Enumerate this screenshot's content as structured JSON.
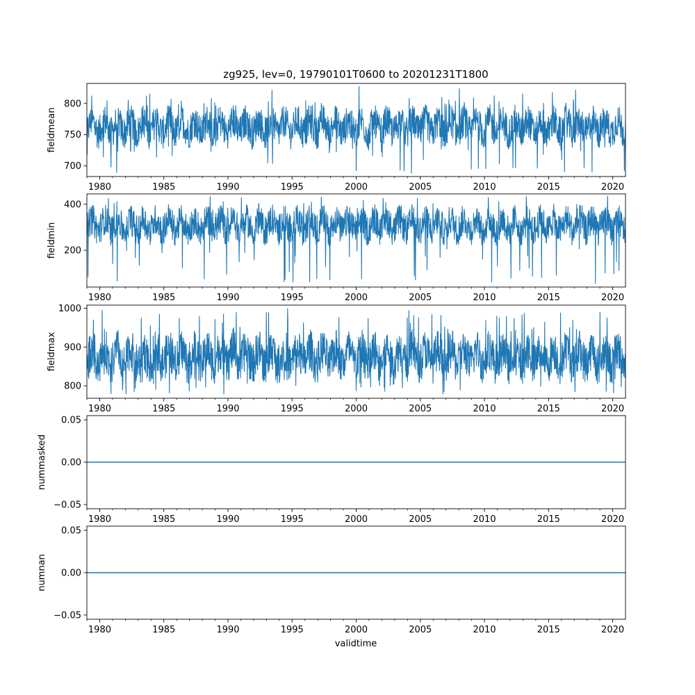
{
  "figure": {
    "title": "zg925, lev=0, 19790101T0600 to 20201231T1800",
    "xlabel": "validtime"
  },
  "colors": {
    "series": "#1f77b4",
    "axes": "#000000",
    "background": "#ffffff"
  },
  "chart_data": [
    {
      "type": "line",
      "title": "zg925, lev=0, 19790101T0600 to 20201231T1800",
      "xlabel": "",
      "ylabel": "fieldmean",
      "xlim": [
        "1979-01-01",
        "2020-12-31"
      ],
      "ylim": [
        683,
        832
      ],
      "x_ticks": [
        "1980",
        "1985",
        "1990",
        "1995",
        "2000",
        "2005",
        "2010",
        "2015",
        "2020"
      ],
      "y_ticks": [
        700,
        750,
        800
      ],
      "y_tick_labels": [
        "700",
        "750",
        "800"
      ],
      "grid": false,
      "series": [
        {
          "color": "#1f77b4",
          "band": {
            "core_low": 735,
            "core_high": 790,
            "min": 688,
            "max": 827
          }
        }
      ]
    },
    {
      "type": "line",
      "title": "",
      "xlabel": "",
      "ylabel": "fieldmin",
      "xlim": [
        "1979-01-01",
        "2020-12-31"
      ],
      "ylim": [
        40,
        445
      ],
      "x_ticks": [
        "1980",
        "1985",
        "1990",
        "1995",
        "2000",
        "2005",
        "2010",
        "2015",
        "2020"
      ],
      "y_ticks": [
        200,
        400
      ],
      "y_tick_labels": [
        "200",
        "400"
      ],
      "grid": false,
      "series": [
        {
          "color": "#1f77b4",
          "band": {
            "core_low": 240,
            "core_high": 380,
            "min": 55,
            "max": 435
          }
        }
      ]
    },
    {
      "type": "line",
      "title": "",
      "xlabel": "",
      "ylabel": "fieldmax",
      "xlim": [
        "1979-01-01",
        "2020-12-31"
      ],
      "ylim": [
        768,
        1008
      ],
      "x_ticks": [
        "1980",
        "1985",
        "1990",
        "1995",
        "2000",
        "2005",
        "2010",
        "2015",
        "2020"
      ],
      "y_ticks": [
        800,
        900,
        1000
      ],
      "y_tick_labels": [
        "800",
        "900",
        "1000"
      ],
      "grid": false,
      "series": [
        {
          "color": "#1f77b4",
          "band": {
            "core_low": 820,
            "core_high": 930,
            "min": 778,
            "max": 1000
          }
        }
      ]
    },
    {
      "type": "line",
      "title": "",
      "xlabel": "",
      "ylabel": "nummasked",
      "xlim": [
        "1979-01-01",
        "2020-12-31"
      ],
      "ylim": [
        -0.055,
        0.055
      ],
      "x_ticks": [
        "1980",
        "1985",
        "1990",
        "1995",
        "2000",
        "2005",
        "2010",
        "2015",
        "2020"
      ],
      "y_ticks": [
        -0.05,
        0.0,
        0.05
      ],
      "y_tick_labels": [
        "−0.05",
        "0.00",
        "0.05"
      ],
      "grid": false,
      "series": [
        {
          "color": "#1f77b4",
          "x": [
            "1979-01-01",
            "2020-12-31"
          ],
          "y": [
            0,
            0
          ]
        }
      ]
    },
    {
      "type": "line",
      "title": "",
      "xlabel": "validtime",
      "ylabel": "numnan",
      "xlim": [
        "1979-01-01",
        "2020-12-31"
      ],
      "ylim": [
        -0.055,
        0.055
      ],
      "x_ticks": [
        "1980",
        "1985",
        "1990",
        "1995",
        "2000",
        "2005",
        "2010",
        "2015",
        "2020"
      ],
      "y_ticks": [
        -0.05,
        0.0,
        0.05
      ],
      "y_tick_labels": [
        "−0.05",
        "0.00",
        "0.05"
      ],
      "grid": false,
      "series": [
        {
          "color": "#1f77b4",
          "x": [
            "1979-01-01",
            "2020-12-31"
          ],
          "y": [
            0,
            0
          ]
        }
      ]
    }
  ]
}
